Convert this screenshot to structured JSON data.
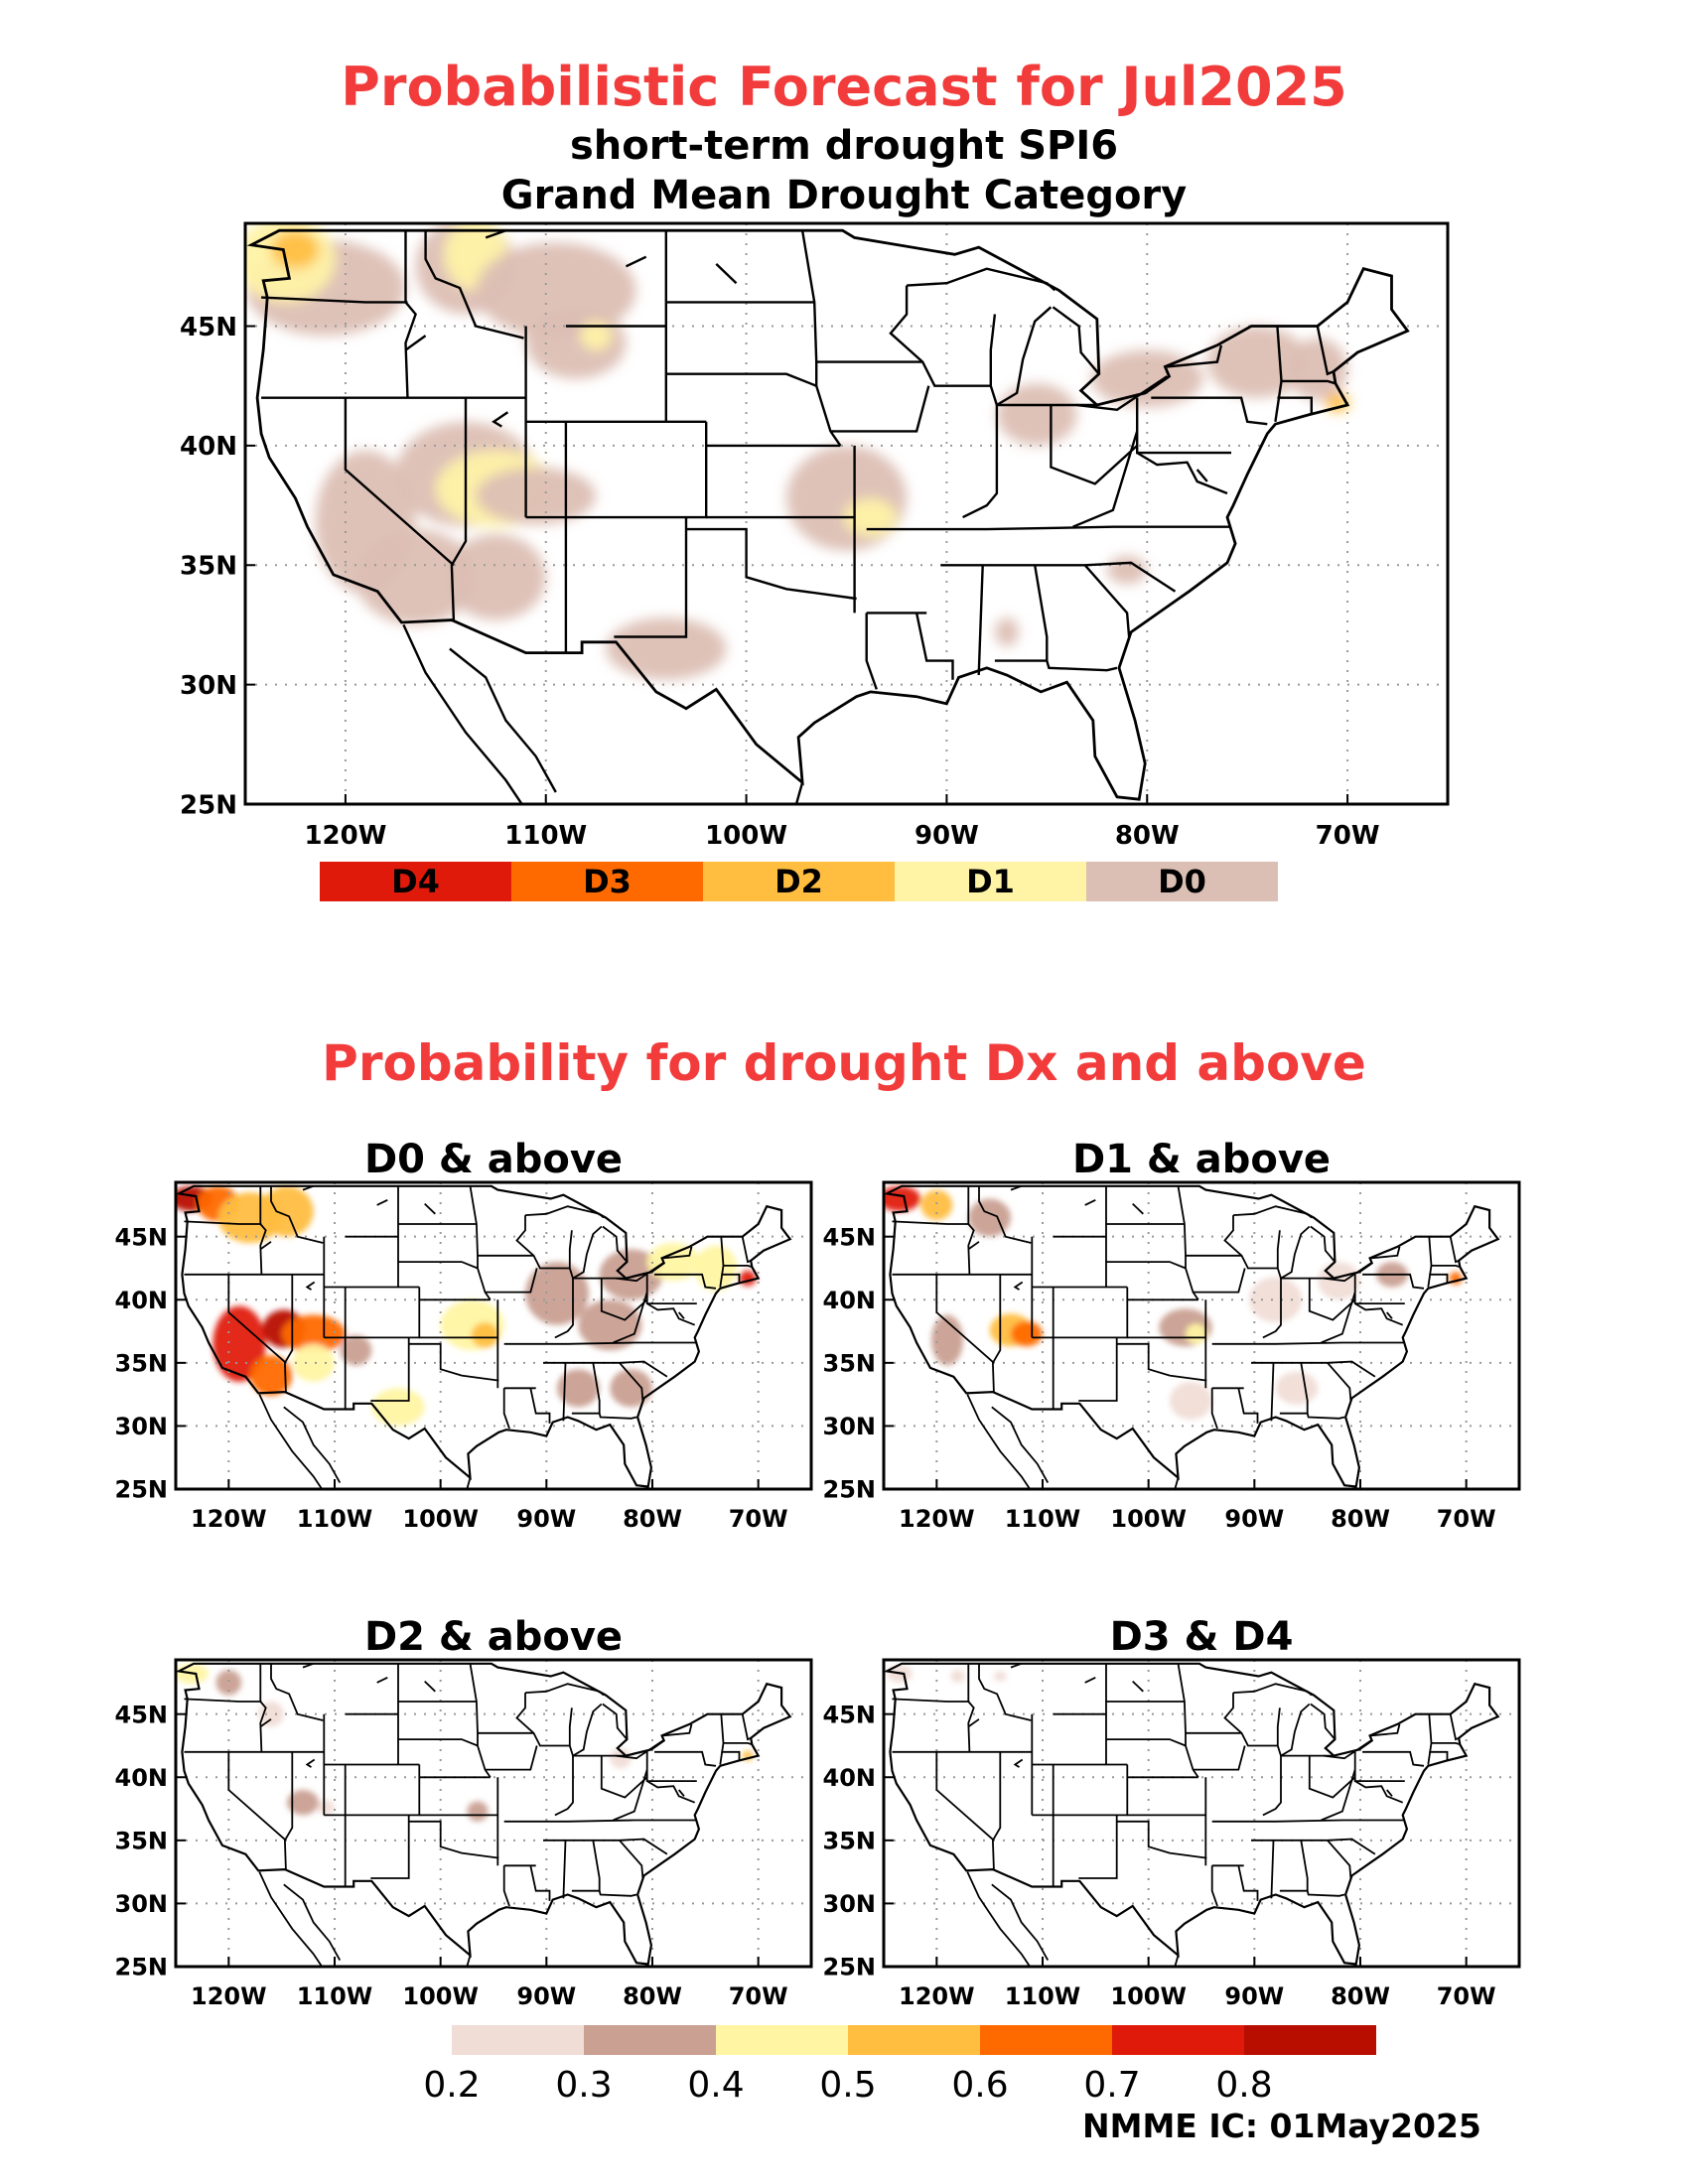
{
  "header": {
    "title": "Probabilistic Forecast for Jul2025",
    "subtitle1": "short-term drought SPI6",
    "subtitle2": "Grand Mean Drought Category"
  },
  "section2_title": "Probability for drought Dx and above",
  "axes": {
    "lat_labels": [
      "45N",
      "40N",
      "35N",
      "30N",
      "25N"
    ],
    "lon_labels": [
      "120W",
      "110W",
      "100W",
      "90W",
      "80W",
      "70W"
    ]
  },
  "category_legend": {
    "items": [
      {
        "label": "D4",
        "color": "#e01a0a"
      },
      {
        "label": "D3",
        "color": "#ff6a00"
      },
      {
        "label": "D2",
        "color": "#ffbe40"
      },
      {
        "label": "D1",
        "color": "#fff3a6"
      },
      {
        "label": "D0",
        "color": "#dcbfb4"
      }
    ]
  },
  "panels": [
    {
      "title": "D0 & above"
    },
    {
      "title": "D1 & above"
    },
    {
      "title": "D2 & above"
    },
    {
      "title": "D3 & D4"
    }
  ],
  "probability_legend": {
    "colors": [
      "#f0ddd6",
      "#c9a092",
      "#fff5a3",
      "#ffbe40",
      "#ff6a00",
      "#e01a0a",
      "#b80e00"
    ],
    "ticks": [
      "0.2",
      "0.3",
      "0.4",
      "0.5",
      "0.6",
      "0.7",
      "0.8"
    ]
  },
  "footer": "NMME IC: 01May2025"
}
